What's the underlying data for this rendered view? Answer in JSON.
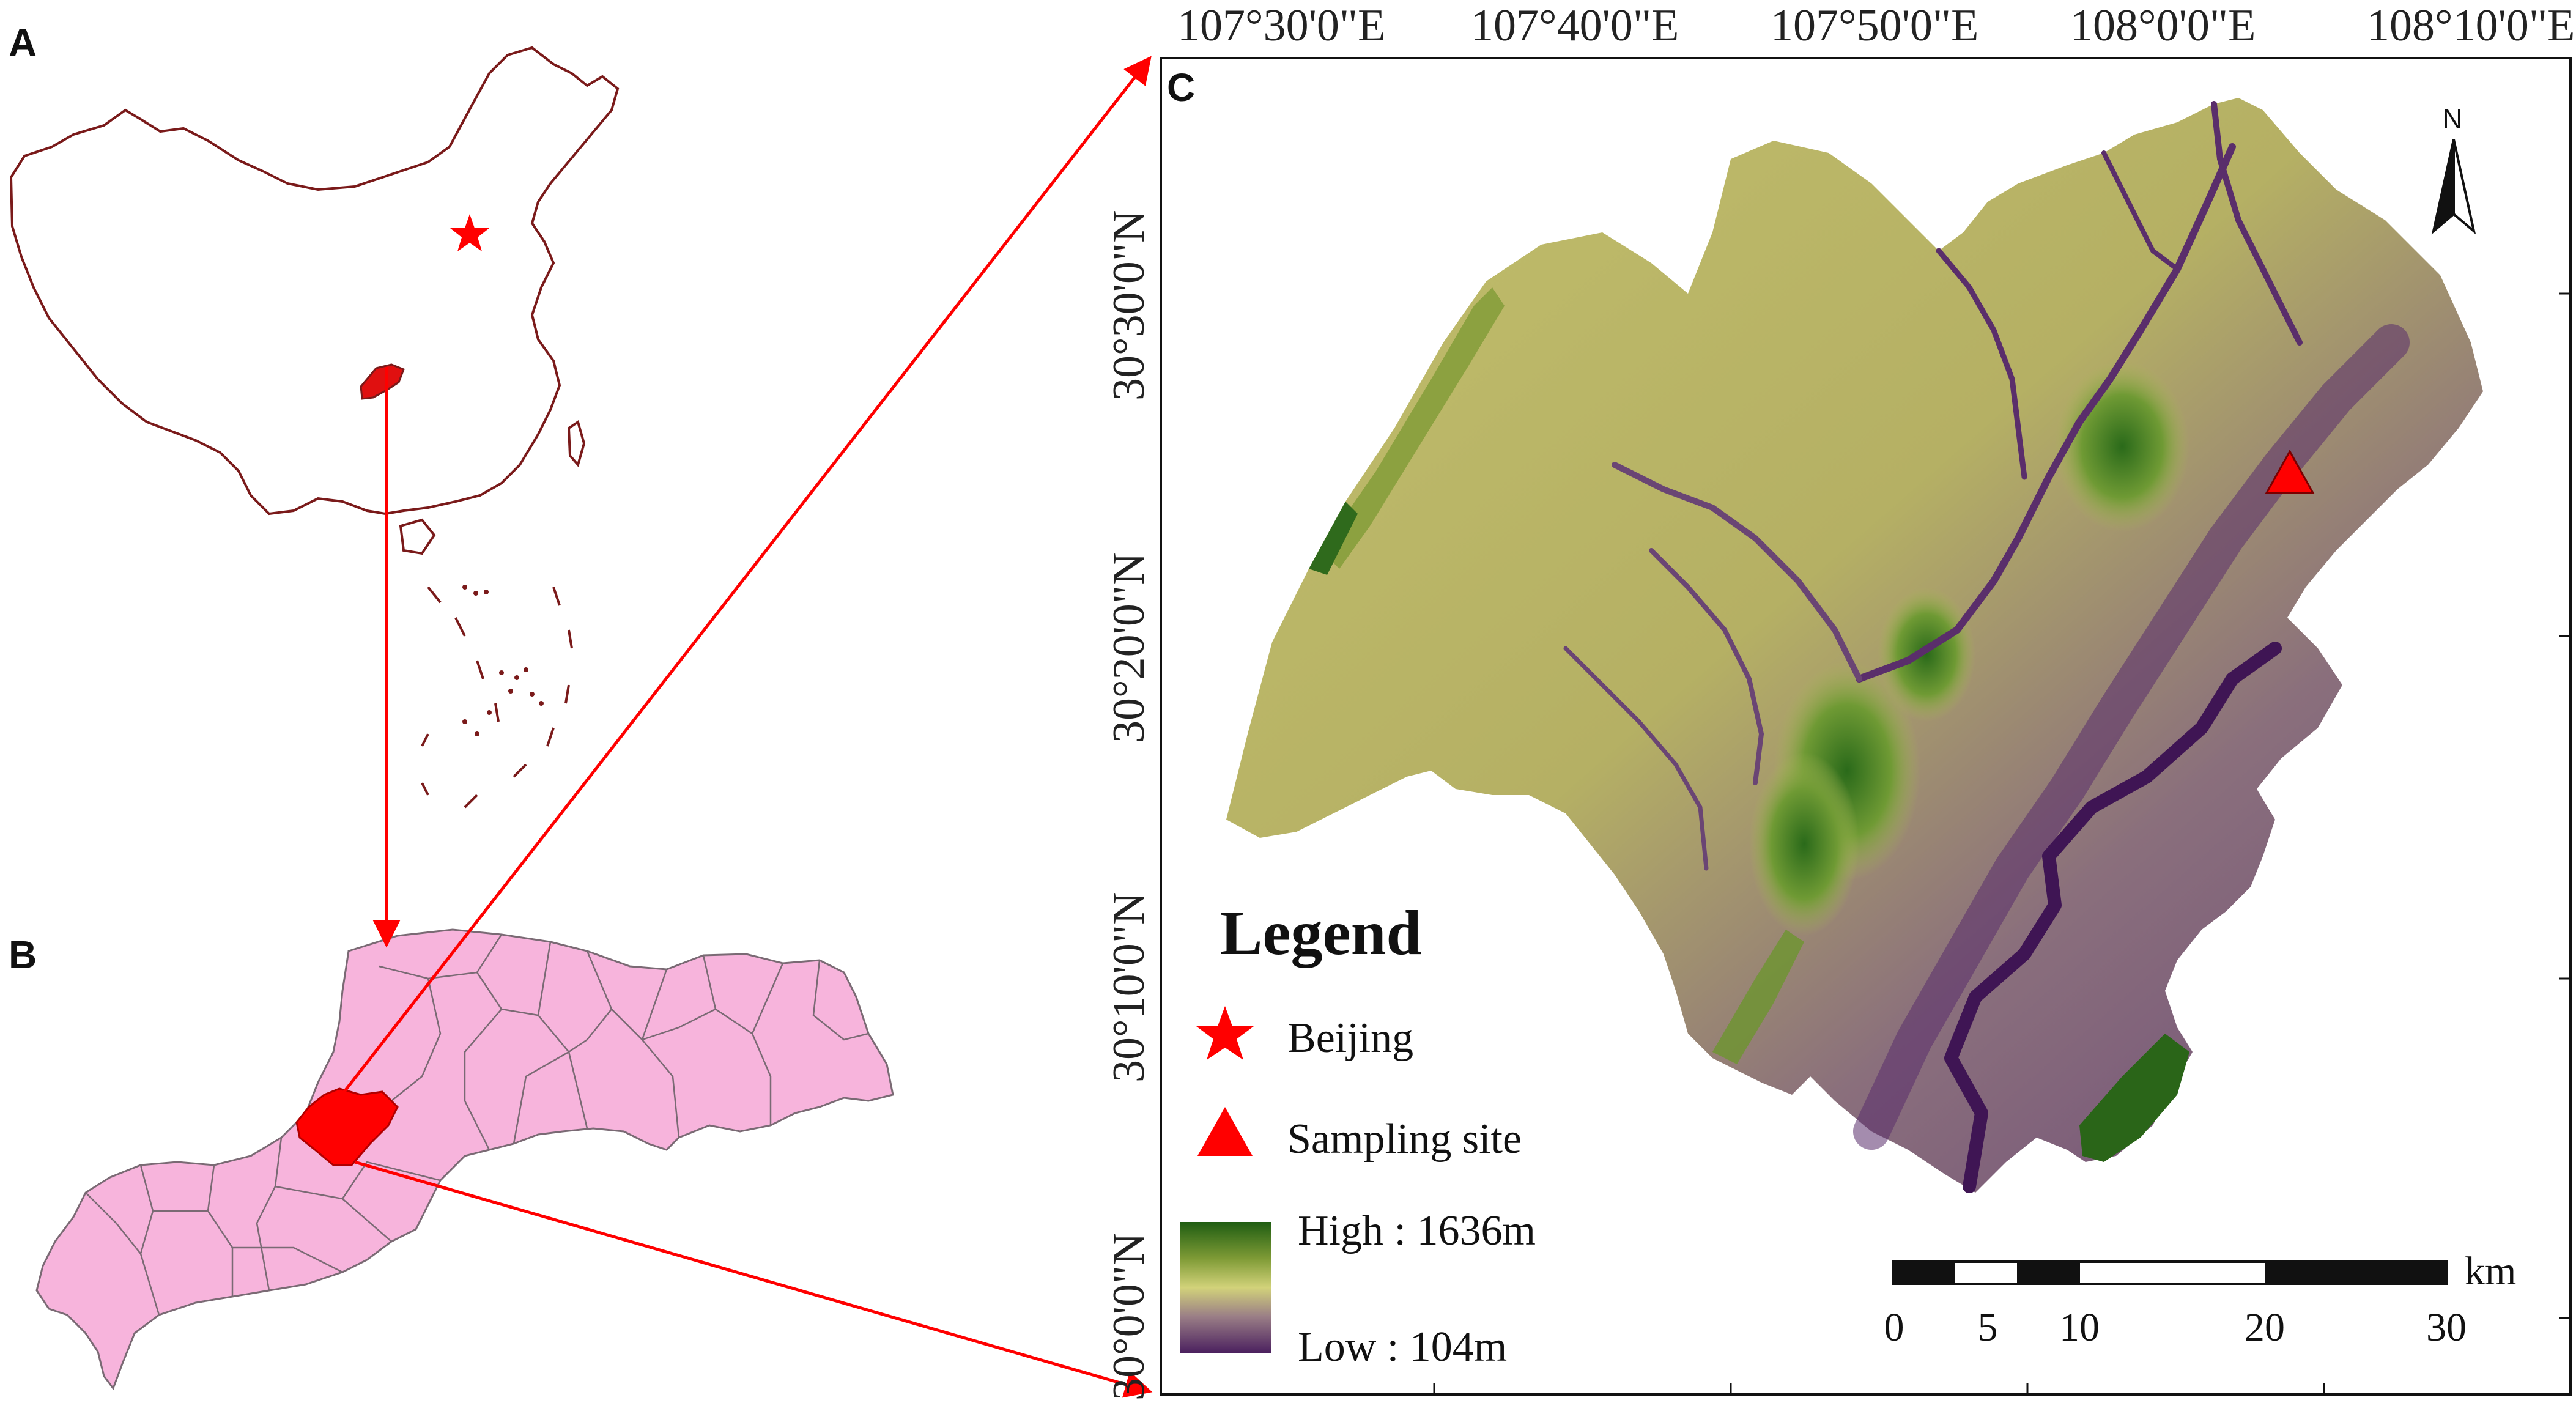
{
  "panels": {
    "a_label": "A",
    "b_label": "B",
    "c_label": "C"
  },
  "longitudes": [
    "107°30'0\"E",
    "107°40'0\"E",
    "107°50'0\"E",
    "108°0'0\"E",
    "108°10'0\"E"
  ],
  "latitudes": [
    "30°30'0\"N",
    "30°20'0\"N",
    "30°10'0\"N",
    "30°0'0\"N"
  ],
  "north": "N",
  "legend": {
    "title": "Legend",
    "beijing": "Beijing",
    "sampling": "Sampling site",
    "high": "High : 1636m",
    "low": "Low : 104m"
  },
  "scalebar": {
    "unit": "km",
    "ticks": [
      "0",
      "5",
      "10",
      "20",
      "30"
    ]
  },
  "colors": {
    "china_outline": "#7a1a1a",
    "marker_red": "#ff0000",
    "province_pink": "#f7b4dc",
    "province_border": "#7a6a74",
    "dem_high": "#1f5d12",
    "dem_mid": "#c8cc6e",
    "dem_low": "#4a1f5e"
  }
}
